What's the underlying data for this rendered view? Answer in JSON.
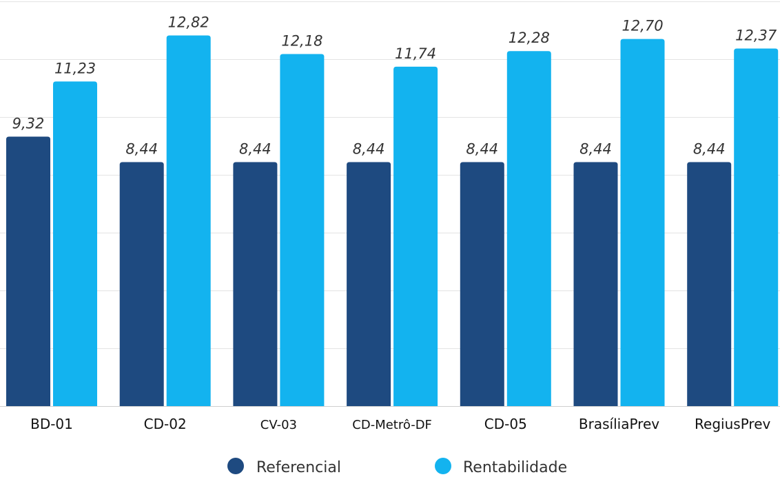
{
  "chart_data": {
    "type": "bar",
    "categories": [
      "BD-01",
      "CD-02",
      "CV-03",
      "CD-Metrô-DF",
      "CD-05",
      "BrasíliaPrev",
      "RegiusPrev"
    ],
    "series": [
      {
        "name": "Referencial",
        "color": "#1e4a80",
        "values": [
          9.32,
          8.44,
          8.44,
          8.44,
          8.44,
          8.44,
          8.44
        ],
        "labels": [
          "9,32",
          "8,44",
          "8,44",
          "8,44",
          "8,44",
          "8,44",
          "8,44"
        ]
      },
      {
        "name": "Rentabilidade",
        "color": "#13b3ef",
        "values": [
          11.23,
          12.82,
          12.18,
          11.74,
          12.28,
          12.7,
          12.37
        ],
        "labels": [
          "11,23",
          "12,82",
          "12,18",
          "11,74",
          "12,28",
          "12,70",
          "12,37"
        ]
      }
    ],
    "ylim": [
      0,
      14
    ],
    "grid": true,
    "legend": "bottom-center",
    "title": "",
    "xlabel": "",
    "ylabel": ""
  }
}
